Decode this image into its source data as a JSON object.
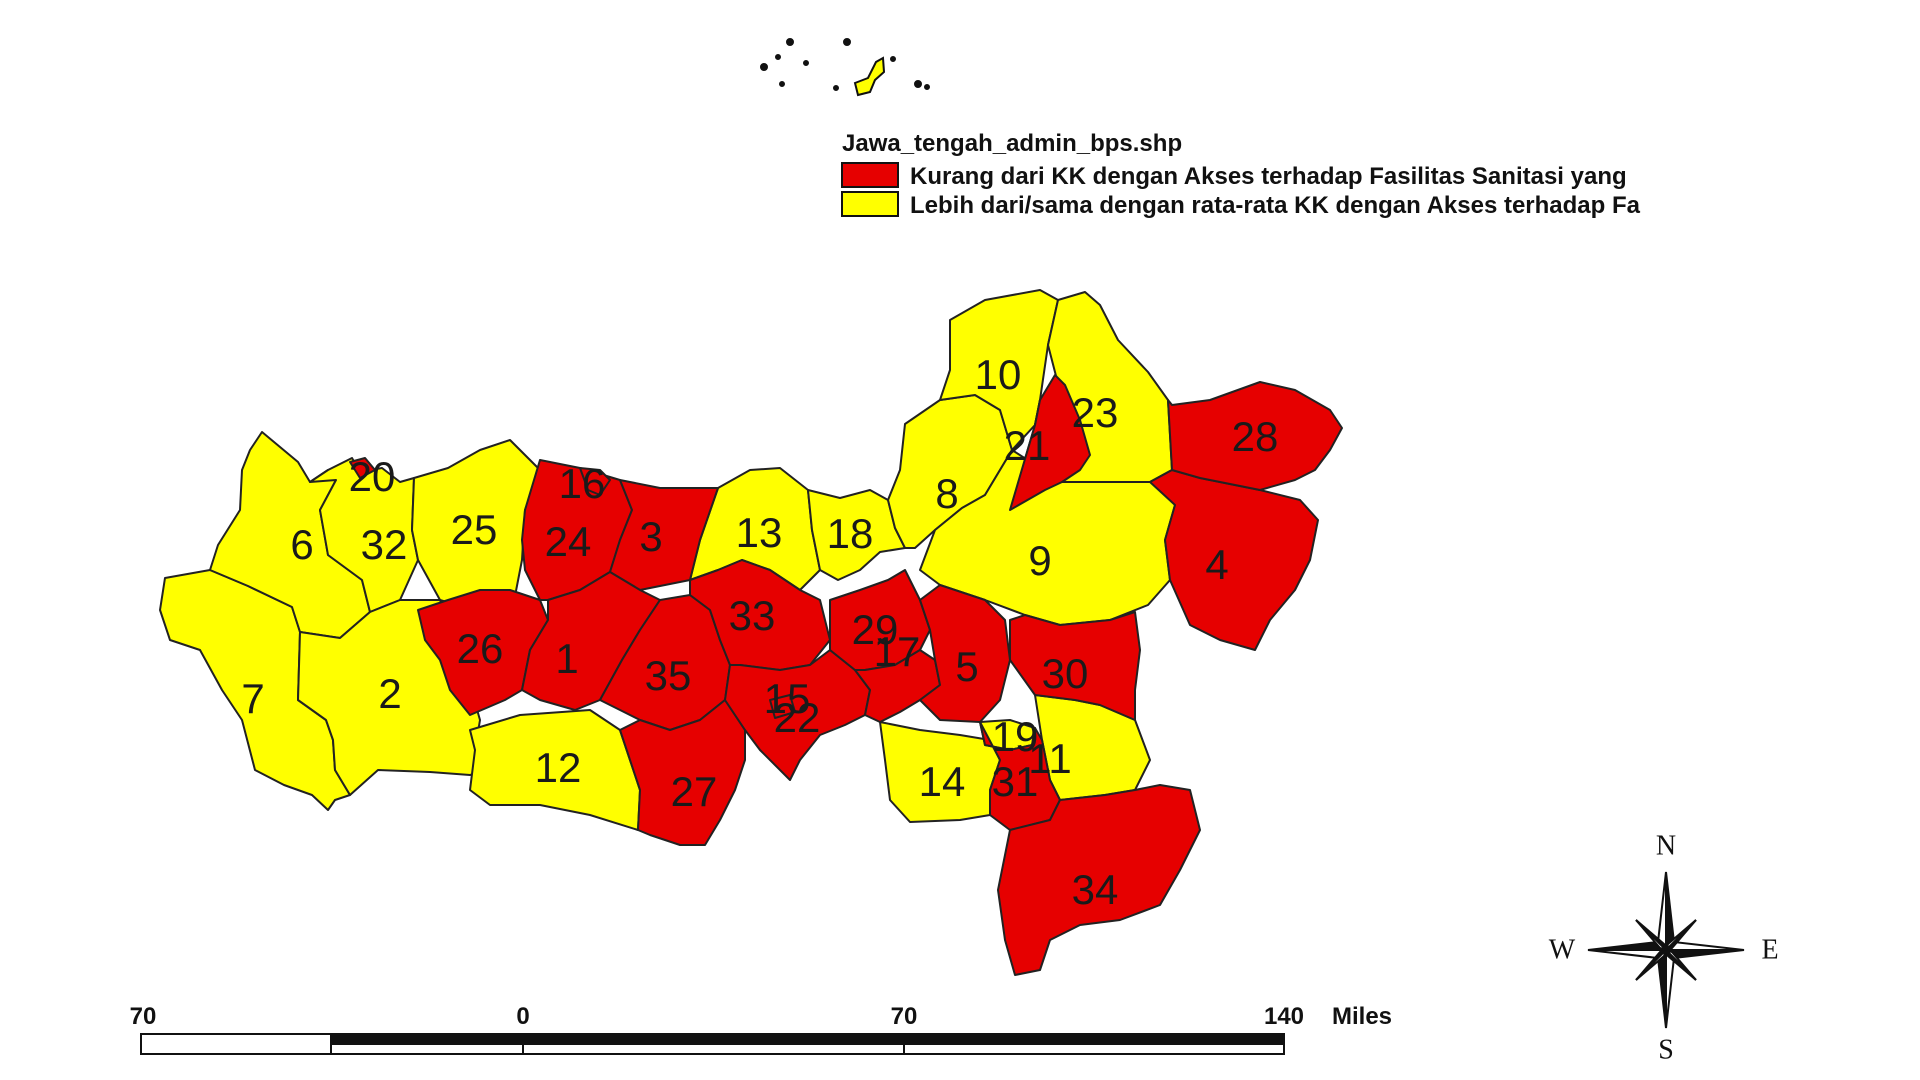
{
  "legend": {
    "title": "Jawa_tengah_admin_bps.shp",
    "items": [
      {
        "label": "Kurang dari KK dengan Akses terhadap Fasilitas Sanitasi yang",
        "color": "#e60000",
        "category": "red"
      },
      {
        "label": "Lebih dari/sama dengan rata-rata KK dengan Akses terhadap Fa",
        "color": "#ffff00",
        "category": "yellow"
      }
    ]
  },
  "regions": [
    {
      "id": "1",
      "category": "red"
    },
    {
      "id": "2",
      "category": "yellow"
    },
    {
      "id": "3",
      "category": "red"
    },
    {
      "id": "4",
      "category": "red"
    },
    {
      "id": "5",
      "category": "red"
    },
    {
      "id": "6",
      "category": "yellow"
    },
    {
      "id": "7",
      "category": "yellow"
    },
    {
      "id": "8",
      "category": "yellow"
    },
    {
      "id": "9",
      "category": "yellow"
    },
    {
      "id": "10",
      "category": "yellow"
    },
    {
      "id": "11",
      "category": "yellow"
    },
    {
      "id": "12",
      "category": "yellow"
    },
    {
      "id": "13",
      "category": "yellow"
    },
    {
      "id": "14",
      "category": "yellow"
    },
    {
      "id": "15",
      "category": "red"
    },
    {
      "id": "16",
      "category": "red"
    },
    {
      "id": "17",
      "category": "red"
    },
    {
      "id": "18",
      "category": "yellow"
    },
    {
      "id": "19",
      "category": "yellow"
    },
    {
      "id": "20",
      "category": "red"
    },
    {
      "id": "21",
      "category": "red"
    },
    {
      "id": "22",
      "category": "red"
    },
    {
      "id": "23",
      "category": "yellow"
    },
    {
      "id": "24",
      "category": "red"
    },
    {
      "id": "25",
      "category": "yellow"
    },
    {
      "id": "26",
      "category": "red"
    },
    {
      "id": "27",
      "category": "red"
    },
    {
      "id": "28",
      "category": "red"
    },
    {
      "id": "29",
      "category": "red"
    },
    {
      "id": "30",
      "category": "red"
    },
    {
      "id": "31",
      "category": "red"
    },
    {
      "id": "32",
      "category": "yellow"
    },
    {
      "id": "33",
      "category": "red"
    },
    {
      "id": "34",
      "category": "red"
    },
    {
      "id": "35",
      "category": "red"
    }
  ],
  "scale_bar": {
    "labels": [
      "70",
      "0",
      "70",
      "140"
    ],
    "unit": "Miles"
  },
  "compass": {
    "n": "N",
    "s": "S",
    "e": "E",
    "w": "W"
  },
  "colors": {
    "red": "#e60000",
    "yellow": "#ffff00",
    "outline": "#222222"
  }
}
